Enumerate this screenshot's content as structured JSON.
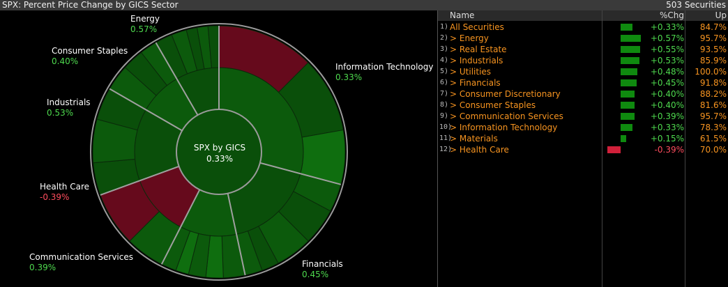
{
  "header": {
    "title": "SPX: Percent Price Change by GICS Sector",
    "count": "503 Securities"
  },
  "colors": {
    "positive": "#4ed94e",
    "negative": "#ff4d5e",
    "orange": "#f79420",
    "bar_pos": "#0f8a0f",
    "bar_neg": "#d0203a"
  },
  "center": {
    "title": "SPX by GICS",
    "value": "0.33%"
  },
  "labels": [
    {
      "name": "Energy",
      "pct": "0.57%",
      "sign": "pos"
    },
    {
      "name": "Consumer Staples",
      "pct": "0.40%",
      "sign": "pos"
    },
    {
      "name": "Information Technology",
      "pct": "0.33%",
      "sign": "pos"
    },
    {
      "name": "Industrials",
      "pct": "0.53%",
      "sign": "pos"
    },
    {
      "name": "Health Care",
      "pct": "-0.39%",
      "sign": "neg"
    },
    {
      "name": "Communication Services",
      "pct": "0.39%",
      "sign": "pos"
    },
    {
      "name": "Financials",
      "pct": "0.45%",
      "sign": "pos"
    }
  ],
  "table": {
    "headers": {
      "name": "Name",
      "chg": "%Chg",
      "up": "Up"
    },
    "rows": [
      {
        "idx": "1)",
        "name": "All Securities",
        "chg": "+0.33%",
        "chg_value": 0.33,
        "up": "84.7%"
      },
      {
        "idx": "2)",
        "name": "> Energy",
        "chg": "+0.57%",
        "chg_value": 0.57,
        "up": "95.7%"
      },
      {
        "idx": "3)",
        "name": "> Real Estate",
        "chg": "+0.55%",
        "chg_value": 0.55,
        "up": "93.5%"
      },
      {
        "idx": "4)",
        "name": "> Industrials",
        "chg": "+0.53%",
        "chg_value": 0.53,
        "up": "85.9%"
      },
      {
        "idx": "5)",
        "name": "> Utilities",
        "chg": "+0.48%",
        "chg_value": 0.48,
        "up": "100.0%"
      },
      {
        "idx": "6)",
        "name": "> Financials",
        "chg": "+0.45%",
        "chg_value": 0.45,
        "up": "91.8%"
      },
      {
        "idx": "7)",
        "name": "> Consumer Discretionary",
        "chg": "+0.40%",
        "chg_value": 0.4,
        "up": "88.2%"
      },
      {
        "idx": "8)",
        "name": "> Consumer Staples",
        "chg": "+0.40%",
        "chg_value": 0.4,
        "up": "81.6%"
      },
      {
        "idx": "9)",
        "name": "> Communication Services",
        "chg": "+0.39%",
        "chg_value": 0.39,
        "up": "95.7%"
      },
      {
        "idx": "10)",
        "name": "> Information Technology",
        "chg": "+0.33%",
        "chg_value": 0.33,
        "up": "78.3%"
      },
      {
        "idx": "11)",
        "name": "> Materials",
        "chg": "+0.15%",
        "chg_value": 0.15,
        "up": "61.5%"
      },
      {
        "idx": "12)",
        "name": "> Health Care",
        "chg": "-0.39%",
        "chg_value": -0.39,
        "up": "70.0%"
      }
    ]
  },
  "chart_data": {
    "type": "sunburst",
    "title": "SPX: Percent Price Change by GICS Sector",
    "center": {
      "label": "SPX by GICS",
      "value": 0.33
    },
    "sectors": [
      {
        "name": "Information Technology",
        "change": 0.33
      },
      {
        "name": "Financials",
        "change": 0.45
      },
      {
        "name": "Communication Services",
        "change": 0.39
      },
      {
        "name": "Health Care",
        "change": -0.39
      },
      {
        "name": "Industrials",
        "change": 0.53
      },
      {
        "name": "Consumer Staples",
        "change": 0.4
      },
      {
        "name": "Energy",
        "change": 0.57
      }
    ]
  }
}
